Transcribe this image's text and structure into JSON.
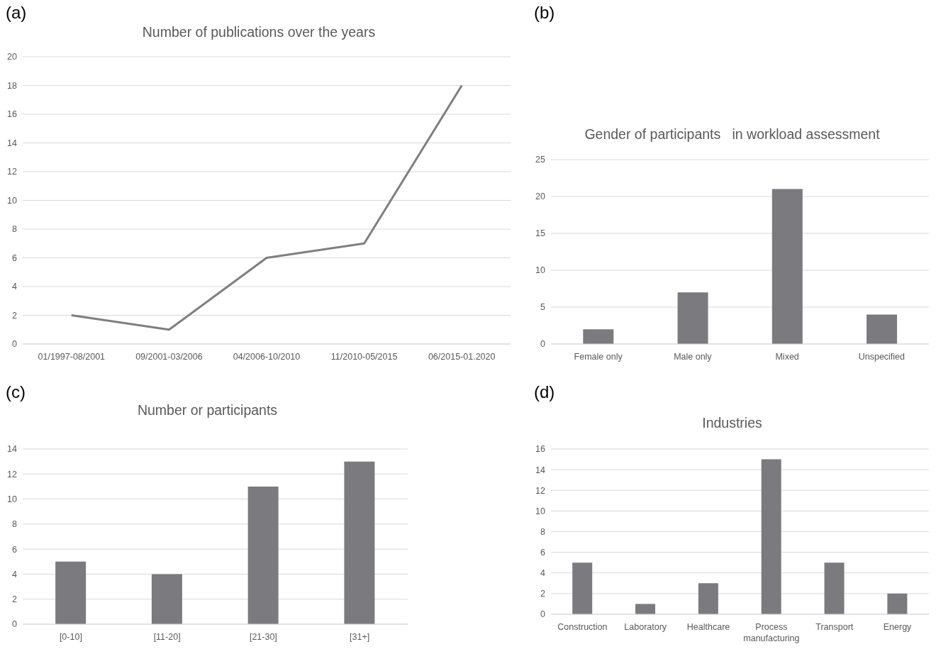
{
  "chart_data": [
    {
      "type": "line",
      "title": "Number of publications over the years",
      "annotations": [
        "(a)"
      ],
      "categories": [
        "01/1997-08/2001",
        "09/2001-03/2006",
        "04/2006-10/2010",
        "11/2010-05/2015",
        "06/2015-01.2020"
      ],
      "values": [
        2,
        1,
        6,
        7,
        18
      ],
      "color": "#7f7f7f",
      "marker": "none",
      "ylim": [
        0,
        20
      ],
      "yticks": [
        0,
        2,
        4,
        6,
        8,
        10,
        12,
        14,
        16,
        18,
        20
      ],
      "grid": "y"
    },
    {
      "type": "bar",
      "title": "Gender of participants   in workload assessment",
      "annotations": [
        "(b)"
      ],
      "categories": [
        "Female only",
        "Male only",
        "Mixed",
        "Unspecified"
      ],
      "values": [
        2,
        7,
        21,
        4
      ],
      "color": "#7b7b7f",
      "ylim": [
        0,
        25
      ],
      "yticks": [
        0,
        5,
        10,
        15,
        20,
        25
      ],
      "grid": "y"
    },
    {
      "type": "bar",
      "title": "Number or participants",
      "annotations": [
        "(c)"
      ],
      "categories": [
        "[0-10]",
        "[11-20]",
        "[21-30]",
        "[31+]"
      ],
      "values": [
        5,
        4,
        11,
        13
      ],
      "color": "#7b7b7f",
      "ylim": [
        0,
        14
      ],
      "yticks": [
        0,
        2,
        4,
        6,
        8,
        10,
        12,
        14
      ],
      "grid": "y"
    },
    {
      "type": "bar",
      "title": "Industries",
      "annotations": [
        "(d)"
      ],
      "categories": [
        "Construction",
        "Laboratory",
        "Healthcare",
        "Process manufacturing",
        "Transport",
        "Energy"
      ],
      "values": [
        5,
        1,
        3,
        15,
        5,
        2
      ],
      "color": "#7b7b7f",
      "ylim": [
        0,
        16
      ],
      "yticks": [
        0,
        2,
        4,
        6,
        8,
        10,
        12,
        14,
        16
      ],
      "grid": "y"
    }
  ]
}
